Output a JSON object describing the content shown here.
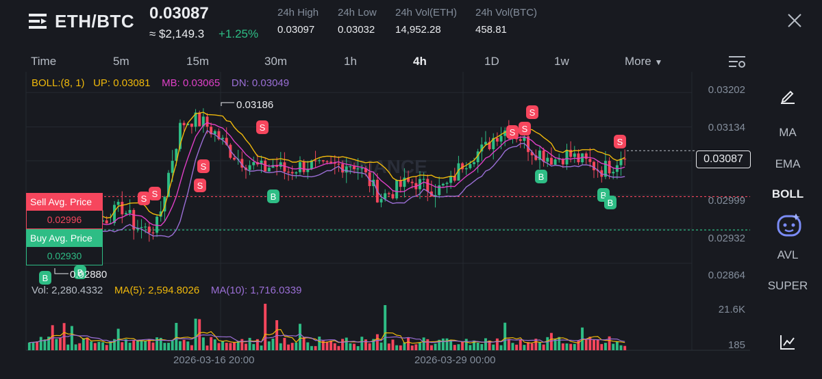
{
  "header": {
    "pair": "ETH/BTC",
    "price": "0.03087",
    "approx_usd": "≈ $2,149.3",
    "change": "+1.25%",
    "stats": [
      {
        "label": "24h High",
        "value": "0.03097"
      },
      {
        "label": "24h Low",
        "value": "0.03032"
      },
      {
        "label": "24h Vol(ETH)",
        "value": "14,952.28"
      },
      {
        "label": "24h Vol(BTC)",
        "value": "458.81"
      }
    ]
  },
  "timeframes": [
    "Time",
    "5m",
    "15m",
    "30m",
    "1h",
    "4h",
    "1D",
    "1w"
  ],
  "active_timeframe": "4h",
  "more_label": "More",
  "indicators": [
    "MA",
    "EMA",
    "BOLL",
    "AVL",
    "SUPER"
  ],
  "active_indicator": "BOLL",
  "boll_legend": {
    "params": "BOLL:(8, 1)",
    "up": "UP: 0.03081",
    "mb": "MB: 0.03065",
    "dn": "DN: 0.03049"
  },
  "vol_legend": {
    "vol": "Vol: 2,280.4332",
    "ma5": "MA(5): 2,594.8026",
    "ma10": "MA(10): 1,716.0339"
  },
  "price_axis": [
    "0.03202",
    "0.03134",
    "0.03067",
    "0.02999",
    "0.02932",
    "0.02864"
  ],
  "volume_axis": [
    "21.6K",
    "185"
  ],
  "date_labels": [
    "2026-03-16 20:00",
    "2026-03-29 00:00"
  ],
  "sell_avg": {
    "label": "Sell Avg. Price",
    "value": "0.02996"
  },
  "buy_avg": {
    "label": "Buy Avg. Price",
    "value": "0.02930"
  },
  "current_price_tag": "0.03087",
  "high_marker": "0.03186",
  "low_marker": "0.02880",
  "watermark": "BINANCE",
  "colors": {
    "up": "#2ebd85",
    "down": "#f6465d",
    "boll_up": "#f0b90b",
    "boll_mb": "#e040c8",
    "boll_dn": "#9b6fd6",
    "sell_line": "#f6465d",
    "buy_line": "#2ebd85"
  },
  "chart_data": {
    "type": "candlestick",
    "timeframe": "4h",
    "ylim": [
      0.0283,
      0.0322
    ],
    "price_ticks": [
      0.03202,
      0.03134,
      0.03067,
      0.02999,
      0.02932,
      0.02864
    ],
    "reference_lines": [
      {
        "name": "Sell Avg. Price",
        "value": 0.02996
      },
      {
        "name": "Buy Avg. Price",
        "value": 0.0293
      },
      {
        "name": "Last",
        "value": 0.03087
      }
    ],
    "high": 0.03186,
    "low": 0.0288,
    "close_path": [
      0.0289,
      0.02905,
      0.0292,
      0.02935,
      0.0295,
      0.0294,
      0.02945,
      0.0296,
      0.02975,
      0.0294,
      0.0293,
      0.0294,
      0.0305,
      0.0314,
      0.0315,
      0.0314,
      0.0312,
      0.0309,
      0.0307,
      0.0306,
      0.0305,
      0.0306,
      0.03045,
      0.03055,
      0.0306,
      0.0305,
      0.03055,
      0.03062,
      0.0306,
      0.0303,
      0.02995,
      0.03005,
      0.0302,
      0.03025,
      0.03015,
      0.0301,
      0.0302,
      0.0306,
      0.0308,
      0.0309,
      0.0312,
      0.0313,
      0.03115,
      0.0309,
      0.0308,
      0.0307,
      0.0308,
      0.0307,
      0.0306,
      0.0305,
      0.0306,
      0.03087
    ],
    "volume_ticks": [
      "21.6K",
      "185"
    ],
    "sell_markers": 11,
    "buy_markers": 6
  }
}
